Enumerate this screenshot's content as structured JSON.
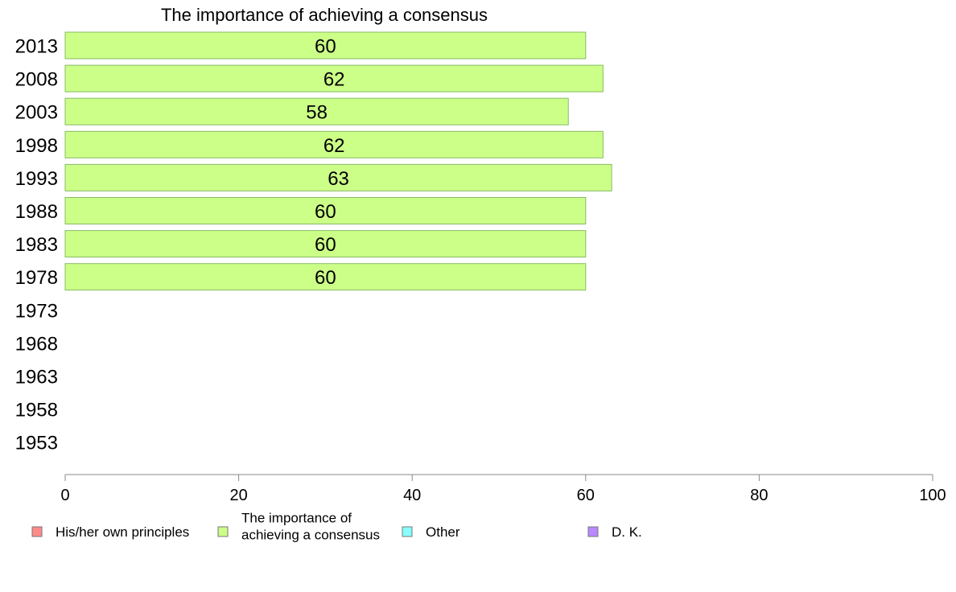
{
  "chart_data": {
    "type": "bar",
    "orientation": "horizontal",
    "title": "The importance of achieving a consensus",
    "categories": [
      "2013",
      "2008",
      "2003",
      "1998",
      "1993",
      "1988",
      "1983",
      "1978",
      "1973",
      "1968",
      "1963",
      "1958",
      "1953"
    ],
    "series": [
      {
        "name": "His/her own principles",
        "color": "#ff8a8a",
        "values": [
          null,
          null,
          null,
          null,
          null,
          null,
          null,
          null,
          null,
          null,
          null,
          null,
          null
        ]
      },
      {
        "name": "The importance of achieving a consensus",
        "color": "#ccff88",
        "values": [
          60,
          62,
          58,
          62,
          63,
          60,
          60,
          60,
          null,
          null,
          null,
          null,
          null
        ]
      },
      {
        "name": "Other",
        "color": "#88ffff",
        "values": [
          null,
          null,
          null,
          null,
          null,
          null,
          null,
          null,
          null,
          null,
          null,
          null,
          null
        ]
      },
      {
        "name": "D. K.",
        "color": "#bb88ff",
        "values": [
          null,
          null,
          null,
          null,
          null,
          null,
          null,
          null,
          null,
          null,
          null,
          null,
          null
        ]
      }
    ],
    "legend": {
      "position": "bottom",
      "items": [
        {
          "lines": [
            "His/her own principles"
          ],
          "color": "#ff8a8a"
        },
        {
          "lines": [
            "The importance of",
            "achieving a consensus"
          ],
          "color": "#ccff88"
        },
        {
          "lines": [
            "Other"
          ],
          "color": "#88ffff"
        },
        {
          "lines": [
            "D. K."
          ],
          "color": "#bb88ff"
        }
      ]
    },
    "xlim": [
      0,
      100
    ],
    "xticks": [
      0,
      20,
      40,
      60,
      80,
      100
    ],
    "xlabel": "",
    "ylabel": "",
    "grid": false
  }
}
